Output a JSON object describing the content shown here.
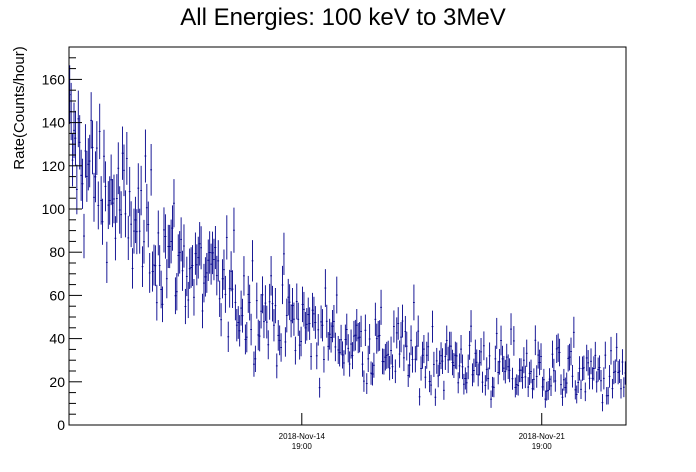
{
  "chart_data": {
    "type": "scatter",
    "title": "All Energies:  100 keV to 3MeV",
    "xlabel": "",
    "ylabel": "Rate(Counts/hour)",
    "x_axis": {
      "kind": "time",
      "range": [
        "2018-11-08 00:00",
        "2018-11-24 06:00"
      ],
      "ticks": [
        {
          "at": "2018-11-14 19:00",
          "line1": "2018-Nov-14",
          "line2": "19:00"
        },
        {
          "at": "2018-11-21 19:00",
          "line1": "2018-Nov-21",
          "line2": "19:00"
        }
      ]
    },
    "ylim": [
      0,
      175
    ],
    "yticks": [
      0,
      20,
      40,
      60,
      80,
      100,
      120,
      140,
      160
    ],
    "grid": false,
    "legend": "none",
    "series": [
      {
        "color": "#00008b",
        "style": "points-with-vertical-error-bars",
        "trend": {
          "model": "exponential-decay-plus-background",
          "background": 18,
          "amplitude": 112,
          "decay_hours": 118,
          "spread_sigma": 12
        },
        "sample_points": [
          {
            "x": "2018-11-08 01:00",
            "y": 125
          },
          {
            "x": "2018-11-08 16:00",
            "y": 128
          },
          {
            "x": "2018-11-09 06:00",
            "y": 120
          },
          {
            "x": "2018-11-10 00:00",
            "y": 100
          },
          {
            "x": "2018-11-11 00:00",
            "y": 90
          },
          {
            "x": "2018-11-12 00:00",
            "y": 75
          },
          {
            "x": "2018-11-13 00:00",
            "y": 65
          },
          {
            "x": "2018-11-14 00:00",
            "y": 55
          },
          {
            "x": "2018-11-14 19:00",
            "y": 50
          },
          {
            "x": "2018-11-16 00:00",
            "y": 45
          },
          {
            "x": "2018-11-18 00:00",
            "y": 38
          },
          {
            "x": "2018-11-20 00:00",
            "y": 32
          },
          {
            "x": "2018-11-21 19:00",
            "y": 25
          },
          {
            "x": "2018-11-23 00:00",
            "y": 22
          },
          {
            "x": "2018-11-24 06:00",
            "y": 20
          }
        ]
      }
    ]
  }
}
